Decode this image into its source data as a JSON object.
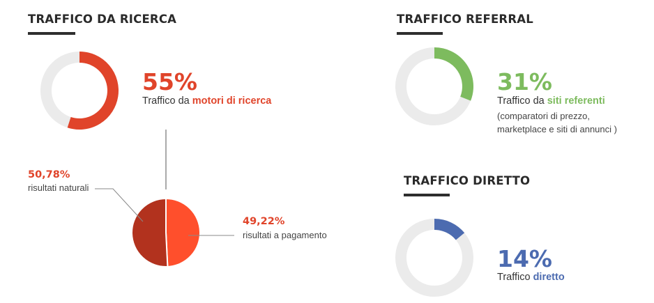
{
  "sections": {
    "search": {
      "title": "TRAFFICO DA RICERCA",
      "percent": "55%",
      "desc_prefix": "Traffico da ",
      "desc_highlight": "motori di ricerca",
      "color": "#e0442a"
    },
    "referral": {
      "title": "TRAFFICO REFERRAL",
      "percent": "31%",
      "desc_prefix": "Traffico da ",
      "desc_highlight": "siti referenti",
      "note_line1": "(comparatori di prezzo,",
      "note_line2": "marketplace e siti di annunci )",
      "color": "#7dbb5e"
    },
    "direct": {
      "title": "TRAFFICO DIRETTO",
      "percent": "14%",
      "desc_prefix": "Traffico ",
      "desc_highlight": "diretto",
      "color": "#4c6bb0"
    },
    "breakdown": {
      "natural_pct": "50,78%",
      "natural_label": "risultati naturali",
      "natural_color": "#b2321e",
      "paid_pct": "49,22%",
      "paid_label": "risultati a pagamento",
      "paid_color": "#ff4f2c"
    }
  },
  "chart_data": [
    {
      "type": "pie",
      "title": "TRAFFICO DA RICERCA",
      "style": "donut",
      "categories": [
        "motori di ricerca"
      ],
      "values": [
        55
      ],
      "max": 100,
      "color": "#e0442a",
      "track_color": "#ebebeb"
    },
    {
      "type": "pie",
      "title": "TRAFFICO REFERRAL",
      "style": "donut",
      "categories": [
        "siti referenti"
      ],
      "values": [
        31
      ],
      "max": 100,
      "color": "#7dbb5e",
      "track_color": "#ebebeb"
    },
    {
      "type": "pie",
      "title": "TRAFFICO DIRETTO",
      "style": "donut",
      "categories": [
        "diretto"
      ],
      "values": [
        14
      ],
      "max": 100,
      "color": "#4c6bb0",
      "track_color": "#ebebeb"
    },
    {
      "type": "pie",
      "categories": [
        "risultati naturali",
        "risultati a pagamento"
      ],
      "values": [
        50.78,
        49.22
      ],
      "colors": [
        "#b2321e",
        "#ff4f2c"
      ]
    }
  ]
}
